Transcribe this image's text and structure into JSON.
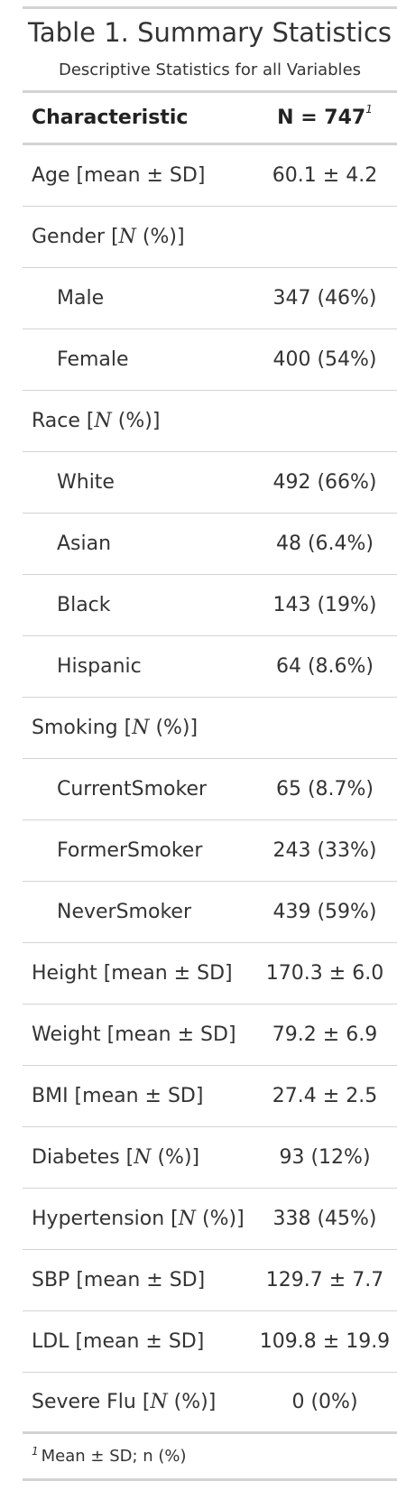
{
  "table": {
    "title": "Table 1. Summary Statistics",
    "subtitle": "Descriptive Statistics for all Variables",
    "header": {
      "characteristic": "Characteristic",
      "n_label": "N = 747",
      "n_footnote_mark": "1"
    },
    "rows": [
      {
        "label": "Age [mean ± SD]",
        "prefix": "Age [mean ± SD]",
        "italic": "",
        "suffix": "",
        "value": "60.1 ± 4.2",
        "indent": false
      },
      {
        "label": "Gender [N (%)]",
        "prefix": "Gender [",
        "italic": "N",
        "suffix": " (%)]",
        "value": "",
        "indent": false
      },
      {
        "label": "Male",
        "prefix": "Male",
        "italic": "",
        "suffix": "",
        "value": "347 (46%)",
        "indent": true
      },
      {
        "label": "Female",
        "prefix": "Female",
        "italic": "",
        "suffix": "",
        "value": "400 (54%)",
        "indent": true
      },
      {
        "label": "Race [N (%)]",
        "prefix": "Race [",
        "italic": "N",
        "suffix": " (%)]",
        "value": "",
        "indent": false
      },
      {
        "label": "White",
        "prefix": "White",
        "italic": "",
        "suffix": "",
        "value": "492 (66%)",
        "indent": true
      },
      {
        "label": "Asian",
        "prefix": "Asian",
        "italic": "",
        "suffix": "",
        "value": "48 (6.4%)",
        "indent": true
      },
      {
        "label": "Black",
        "prefix": "Black",
        "italic": "",
        "suffix": "",
        "value": "143 (19%)",
        "indent": true
      },
      {
        "label": "Hispanic",
        "prefix": "Hispanic",
        "italic": "",
        "suffix": "",
        "value": "64 (8.6%)",
        "indent": true
      },
      {
        "label": "Smoking [N (%)]",
        "prefix": "Smoking [",
        "italic": "N",
        "suffix": " (%)]",
        "value": "",
        "indent": false
      },
      {
        "label": "CurrentSmoker",
        "prefix": "CurrentSmoker",
        "italic": "",
        "suffix": "",
        "value": "65 (8.7%)",
        "indent": true
      },
      {
        "label": "FormerSmoker",
        "prefix": "FormerSmoker",
        "italic": "",
        "suffix": "",
        "value": "243 (33%)",
        "indent": true
      },
      {
        "label": "NeverSmoker",
        "prefix": "NeverSmoker",
        "italic": "",
        "suffix": "",
        "value": "439 (59%)",
        "indent": true
      },
      {
        "label": "Height [mean ± SD]",
        "prefix": "Height [mean ± SD]",
        "italic": "",
        "suffix": "",
        "value": "170.3 ± 6.0",
        "indent": false
      },
      {
        "label": "Weight [mean ± SD]",
        "prefix": "Weight [mean ± SD]",
        "italic": "",
        "suffix": "",
        "value": "79.2 ± 6.9",
        "indent": false
      },
      {
        "label": "BMI [mean ± SD]",
        "prefix": "BMI [mean ± SD]",
        "italic": "",
        "suffix": "",
        "value": "27.4 ± 2.5",
        "indent": false
      },
      {
        "label": "Diabetes [N (%)]",
        "prefix": "Diabetes [",
        "italic": "N",
        "suffix": " (%)]",
        "value": "93 (12%)",
        "indent": false
      },
      {
        "label": "Hypertension [N (%)]",
        "prefix": "Hypertension [",
        "italic": "N",
        "suffix": " (%)]",
        "value": "338 (45%)",
        "indent": false
      },
      {
        "label": "SBP [mean ± SD]",
        "prefix": "SBP [mean ± SD]",
        "italic": "",
        "suffix": "",
        "value": "129.7 ± 7.7",
        "indent": false
      },
      {
        "label": "LDL [mean ± SD]",
        "prefix": "LDL [mean ± SD]",
        "italic": "",
        "suffix": "",
        "value": "109.8 ± 19.9",
        "indent": false
      },
      {
        "label": "Severe Flu [N (%)]",
        "prefix": "Severe Flu [",
        "italic": "N",
        "suffix": " (%)]",
        "value": "0 (0%)",
        "indent": false
      }
    ],
    "footnote": {
      "mark": "1",
      "text": "Mean ± SD; n (%)"
    }
  }
}
